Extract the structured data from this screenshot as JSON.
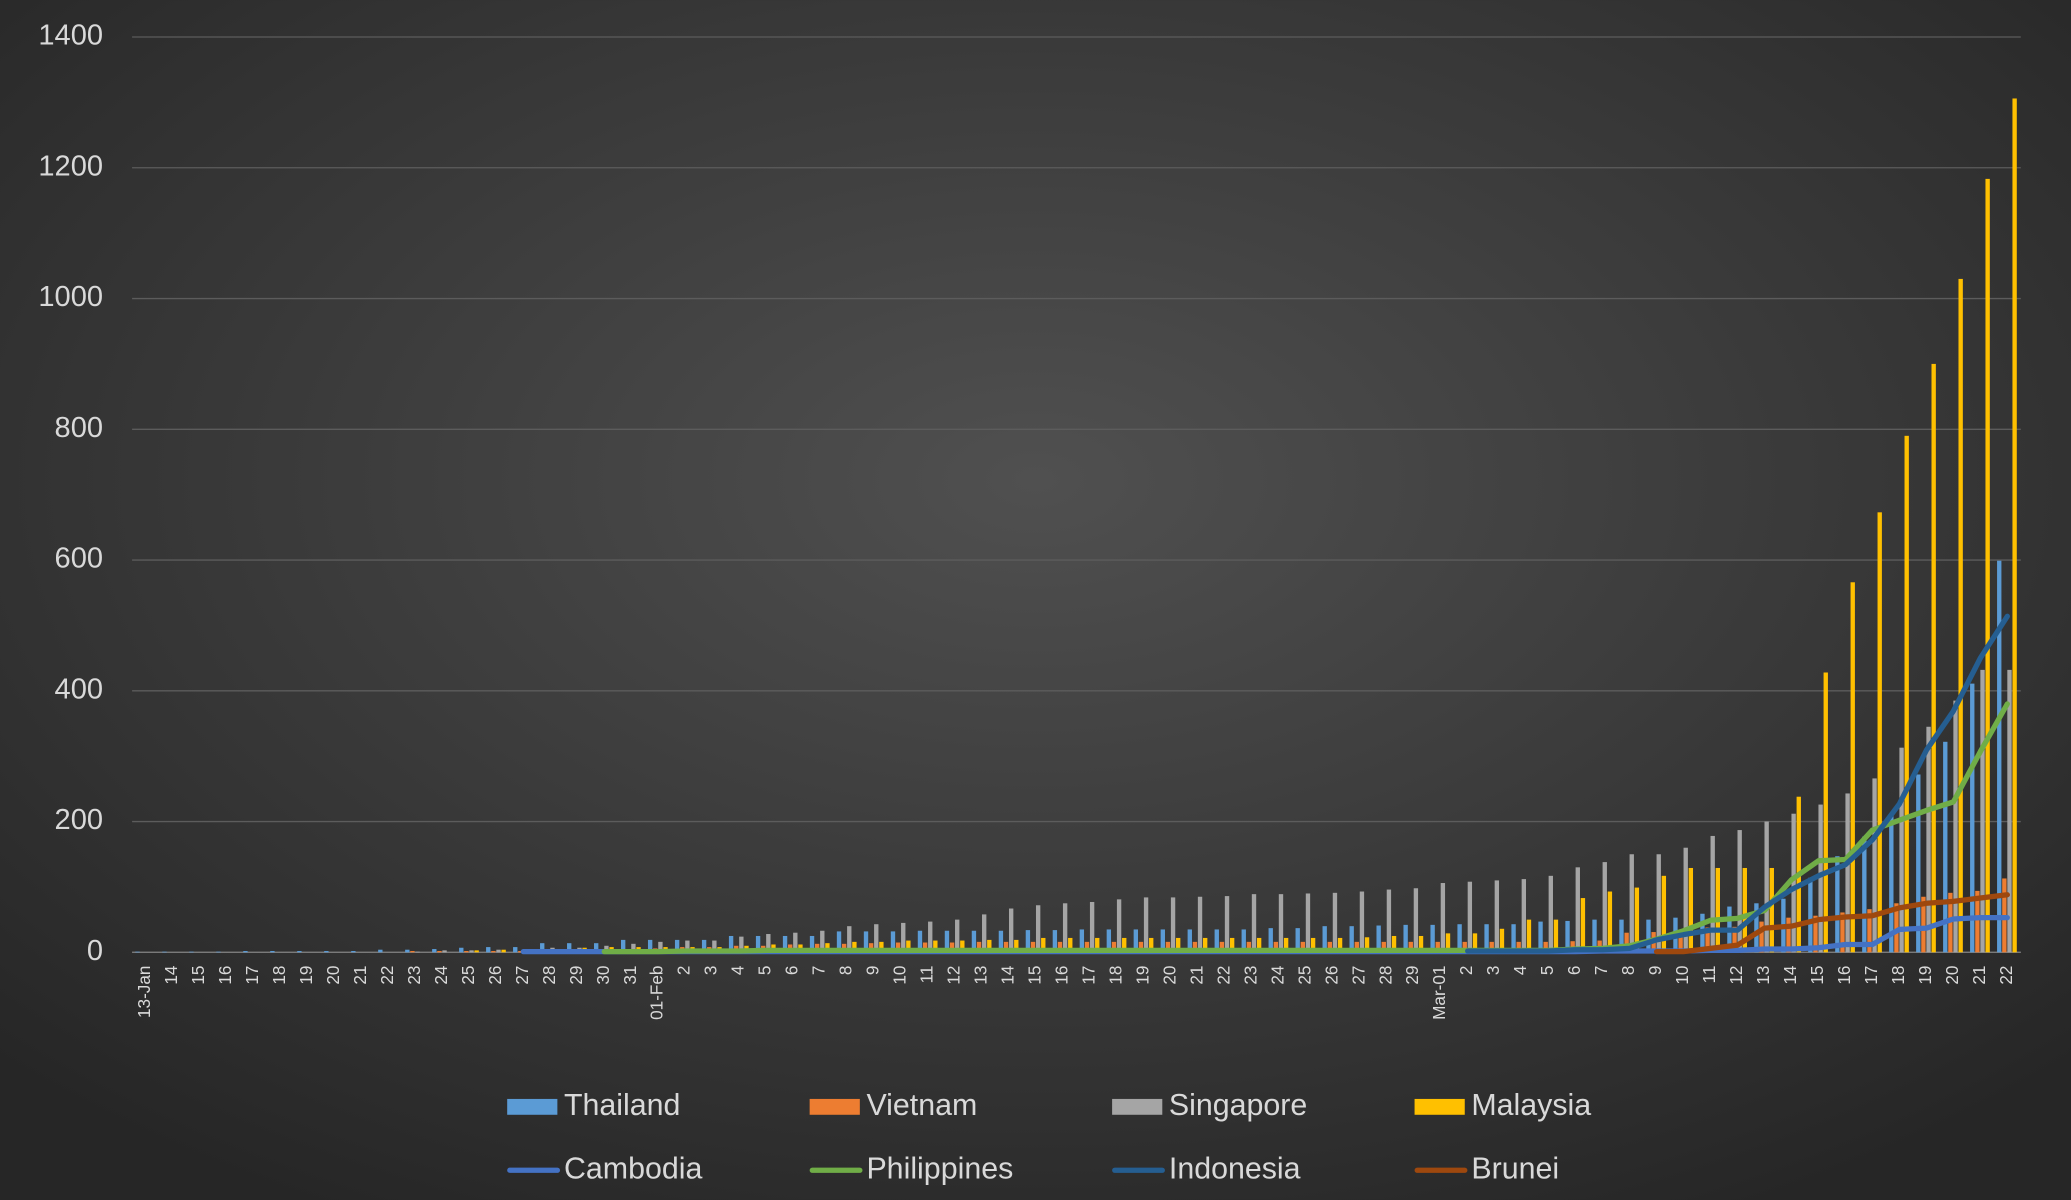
{
  "chart_data": {
    "type": "bar_line",
    "categories": [
      "13-Jan",
      "14",
      "15",
      "16",
      "17",
      "18",
      "19",
      "20",
      "21",
      "22",
      "23",
      "24",
      "25",
      "26",
      "27",
      "28",
      "29",
      "30",
      "31",
      "01-Feb",
      "2",
      "3",
      "4",
      "5",
      "6",
      "7",
      "8",
      "9",
      "10",
      "11",
      "12",
      "13",
      "14",
      "15",
      "16",
      "17",
      "18",
      "19",
      "20",
      "21",
      "22",
      "23",
      "24",
      "25",
      "26",
      "27",
      "28",
      "29",
      "Mar-01",
      "2",
      "3",
      "4",
      "5",
      "6",
      "7",
      "8",
      "9",
      "10",
      "11",
      "12",
      "13",
      "14",
      "15",
      "16",
      "17",
      "18",
      "19",
      "20",
      "21",
      "22"
    ],
    "ylim": [
      0,
      1400
    ],
    "yticks": [
      0,
      200,
      400,
      600,
      800,
      1000,
      1200,
      1400
    ],
    "grid": true,
    "series": [
      {
        "name": "Thailand",
        "kind": "bar",
        "color": "#5b9bd5",
        "values": [
          1,
          1,
          1,
          1,
          2,
          2,
          2,
          2,
          2,
          4,
          4,
          5,
          7,
          8,
          8,
          14,
          14,
          14,
          19,
          19,
          19,
          19,
          25,
          25,
          25,
          25,
          32,
          32,
          32,
          33,
          33,
          33,
          33,
          34,
          34,
          35,
          35,
          35,
          35,
          35,
          35,
          35,
          37,
          37,
          40,
          40,
          41,
          42,
          42,
          43,
          43,
          43,
          47,
          48,
          50,
          50,
          50,
          53,
          59,
          70,
          75,
          82,
          114,
          147,
          177,
          212,
          272,
          322,
          411,
          599
        ]
      },
      {
        "name": "Vietnam",
        "kind": "bar",
        "color": "#ed7d31",
        "values": [
          null,
          null,
          null,
          null,
          null,
          null,
          null,
          null,
          null,
          null,
          2,
          2,
          2,
          2,
          2,
          2,
          2,
          2,
          5,
          6,
          8,
          8,
          10,
          10,
          12,
          13,
          13,
          14,
          15,
          15,
          15,
          16,
          16,
          16,
          16,
          16,
          16,
          16,
          16,
          16,
          16,
          16,
          16,
          16,
          16,
          16,
          16,
          16,
          16,
          16,
          16,
          16,
          16,
          17,
          18,
          30,
          31,
          31,
          38,
          39,
          47,
          53,
          56,
          61,
          66,
          75,
          85,
          91,
          94,
          113
        ]
      },
      {
        "name": "Singapore",
        "kind": "bar",
        "color": "#a5a5a5",
        "values": [
          null,
          null,
          null,
          null,
          null,
          null,
          null,
          null,
          null,
          null,
          1,
          3,
          3,
          4,
          5,
          7,
          7,
          10,
          13,
          16,
          18,
          18,
          24,
          28,
          30,
          33,
          40,
          43,
          45,
          47,
          50,
          58,
          67,
          72,
          75,
          77,
          81,
          84,
          84,
          85,
          86,
          89,
          89,
          90,
          91,
          93,
          96,
          98,
          106,
          108,
          110,
          112,
          117,
          130,
          138,
          150,
          150,
          160,
          178,
          187,
          200,
          212,
          226,
          243,
          266,
          313,
          345,
          385,
          432,
          432
        ]
      },
      {
        "name": "Malaysia",
        "kind": "bar",
        "color": "#ffc000",
        "values": [
          null,
          null,
          null,
          null,
          null,
          null,
          null,
          null,
          null,
          null,
          null,
          null,
          3,
          4,
          4,
          4,
          7,
          8,
          8,
          8,
          8,
          8,
          10,
          12,
          12,
          14,
          16,
          16,
          18,
          18,
          18,
          19,
          19,
          22,
          22,
          22,
          22,
          22,
          22,
          22,
          22,
          22,
          22,
          22,
          22,
          23,
          25,
          25,
          29,
          29,
          36,
          50,
          50,
          83,
          93,
          99,
          117,
          129,
          129,
          129,
          129,
          238,
          428,
          566,
          673,
          790,
          900,
          1030,
          1183,
          1306
        ]
      },
      {
        "name": "Cambodia",
        "kind": "line",
        "color": "#4472c4",
        "values": [
          null,
          null,
          null,
          null,
          null,
          null,
          null,
          null,
          null,
          null,
          null,
          null,
          null,
          null,
          1,
          1,
          1,
          1,
          1,
          1,
          1,
          1,
          1,
          1,
          1,
          1,
          1,
          1,
          1,
          1,
          1,
          1,
          1,
          1,
          1,
          1,
          1,
          1,
          1,
          1,
          1,
          1,
          1,
          1,
          1,
          1,
          1,
          1,
          1,
          1,
          1,
          1,
          1,
          1,
          2,
          2,
          2,
          2,
          3,
          3,
          5,
          5,
          7,
          12,
          12,
          35,
          37,
          51,
          53,
          53
        ]
      },
      {
        "name": "Philippines",
        "kind": "line",
        "color": "#70ad47",
        "values": [
          null,
          null,
          null,
          null,
          null,
          null,
          null,
          null,
          null,
          null,
          null,
          null,
          null,
          null,
          null,
          null,
          null,
          1,
          1,
          1,
          2,
          2,
          2,
          3,
          3,
          3,
          3,
          3,
          3,
          3,
          3,
          3,
          3,
          3,
          3,
          3,
          3,
          3,
          3,
          3,
          3,
          3,
          3,
          3,
          3,
          3,
          3,
          3,
          3,
          3,
          3,
          3,
          3,
          5,
          6,
          10,
          20,
          33,
          49,
          52,
          64,
          111,
          140,
          142,
          187,
          202,
          217,
          230,
          307,
          380
        ]
      },
      {
        "name": "Indonesia",
        "kind": "line",
        "color": "#255e91",
        "values": [
          null,
          null,
          null,
          null,
          null,
          null,
          null,
          null,
          null,
          null,
          null,
          null,
          null,
          null,
          null,
          null,
          null,
          null,
          null,
          null,
          null,
          null,
          null,
          null,
          null,
          null,
          null,
          null,
          null,
          null,
          null,
          null,
          null,
          null,
          null,
          null,
          null,
          null,
          null,
          null,
          null,
          null,
          null,
          null,
          null,
          null,
          null,
          null,
          null,
          2,
          2,
          2,
          2,
          4,
          4,
          6,
          19,
          27,
          34,
          34,
          69,
          96,
          117,
          134,
          172,
          227,
          309,
          369,
          450,
          514
        ]
      },
      {
        "name": "Brunei",
        "kind": "line",
        "color": "#9e480e",
        "values": [
          null,
          null,
          null,
          null,
          null,
          null,
          null,
          null,
          null,
          null,
          null,
          null,
          null,
          null,
          null,
          null,
          null,
          null,
          null,
          null,
          null,
          null,
          null,
          null,
          null,
          null,
          null,
          null,
          null,
          null,
          null,
          null,
          null,
          null,
          null,
          null,
          null,
          null,
          null,
          null,
          null,
          null,
          null,
          null,
          null,
          null,
          null,
          null,
          null,
          null,
          null,
          null,
          null,
          null,
          null,
          null,
          1,
          1,
          6,
          11,
          37,
          40,
          50,
          54,
          56,
          68,
          75,
          78,
          83,
          88
        ]
      }
    ]
  }
}
